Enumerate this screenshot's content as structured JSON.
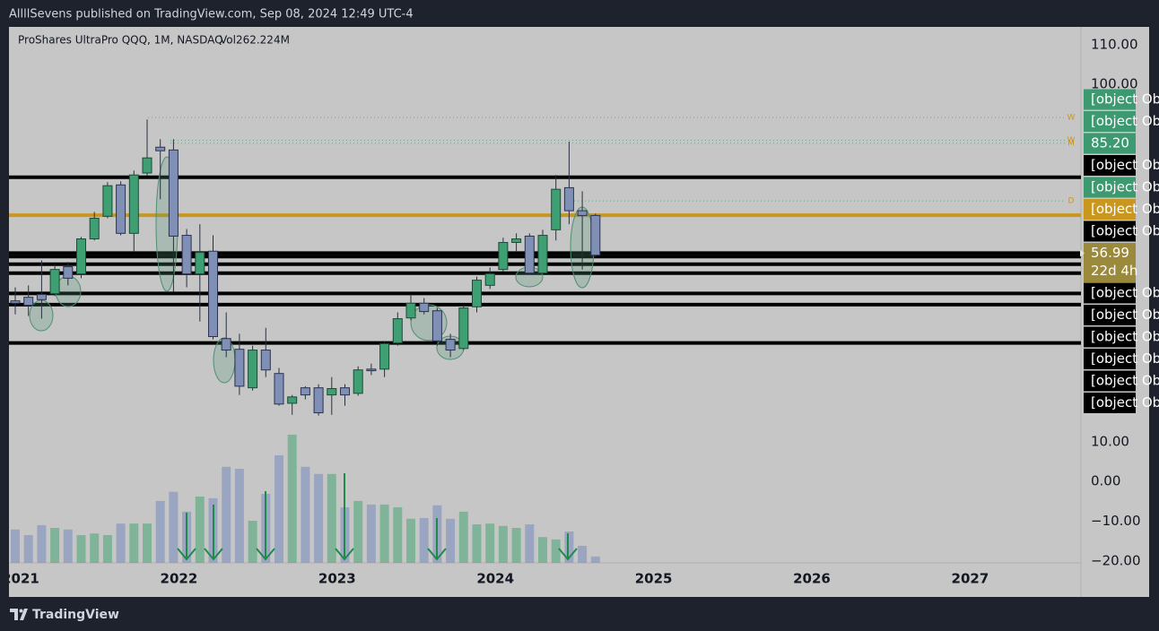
{
  "header": {
    "publisher": "AllllSevens published on TradingView.com, Sep 08, 2024 12:49 UTC-4"
  },
  "chart_data": {
    "type": "candlestick",
    "title": "ProShares UltraPro QQQ, 1M, NASDAQ",
    "volume_label": "Vol262.224M",
    "categories": [
      "2021",
      null,
      null,
      null,
      null,
      null,
      null,
      null,
      null,
      null,
      null,
      null,
      "2022",
      null,
      null,
      null,
      null,
      null,
      null,
      null,
      null,
      null,
      null,
      null,
      "2023",
      null,
      null,
      null,
      null,
      null,
      null,
      null,
      null,
      null,
      null,
      null,
      "2024",
      null,
      null,
      null,
      null,
      null,
      null,
      null,
      null,
      null,
      null,
      null,
      "2025",
      null,
      null,
      null,
      null,
      null,
      null,
      null,
      null,
      null,
      null,
      null,
      "2026",
      null,
      null,
      null,
      null,
      null,
      null,
      null,
      null,
      null,
      null,
      null,
      "2027",
      null,
      null,
      null,
      null,
      null,
      null,
      null,
      null
    ],
    "open": [
      45.5,
      46.4,
      47.1,
      47.3,
      54.1,
      52.3,
      61.1,
      66.8,
      74.7,
      62.5,
      77.7,
      84.2,
      83.5,
      62.0,
      52.3,
      58.0,
      36.0,
      33.3,
      23.6,
      33.1,
      27.2,
      19.7,
      23.6,
      23.6,
      21.8,
      23.6,
      22.2,
      28.3,
      28.3,
      34.9,
      41.2,
      44.9,
      43.0,
      35.8,
      33.5,
      44.0,
      49.4,
      53.4,
      60.2,
      61.8,
      52.5,
      63.4,
      74.0,
      68.2,
      67.0,
      null,
      null,
      null,
      null,
      null,
      null,
      null,
      null,
      null,
      null,
      null,
      null,
      null,
      null,
      null,
      null,
      null,
      null,
      null,
      null,
      null,
      null,
      null,
      null,
      null,
      null,
      null,
      null,
      null,
      null,
      null,
      null,
      null,
      null,
      null,
      null
    ],
    "high": [
      48.9,
      49.4,
      55.7,
      54.6,
      55.3,
      61.6,
      67.9,
      75.4,
      75.6,
      78.3,
      91.2,
      86.2,
      86.2,
      63.6,
      64.8,
      62.0,
      42.6,
      37.2,
      34.2,
      38.7,
      28.6,
      21.8,
      24.0,
      24.5,
      26.3,
      24.5,
      29.0,
      29.7,
      35.4,
      42.6,
      47.1,
      46.2,
      43.7,
      37.2,
      44.4,
      51.6,
      53.9,
      61.4,
      62.5,
      62.5,
      63.4,
      77.2,
      85.6,
      73.1,
      67.5,
      null,
      null,
      null,
      null,
      null,
      null,
      null,
      null,
      null,
      null,
      null,
      null,
      null,
      null,
      null,
      null,
      null,
      null,
      null,
      null,
      null,
      null,
      null,
      null,
      null,
      null,
      null,
      null,
      null,
      null,
      null,
      null,
      null,
      null,
      null,
      null
    ],
    "low": [
      42.1,
      41.7,
      41.0,
      46.7,
      49.4,
      51.2,
      60.7,
      66.3,
      62.0,
      58.0,
      77.0,
      71.1,
      47.8,
      48.9,
      40.3,
      35.8,
      31.3,
      21.8,
      22.9,
      26.3,
      19.1,
      16.8,
      20.7,
      16.6,
      16.8,
      19.1,
      21.6,
      26.8,
      26.3,
      34.2,
      40.6,
      42.1,
      34.2,
      31.3,
      33.1,
      42.6,
      48.5,
      52.8,
      58.0,
      52.1,
      52.1,
      60.7,
      64.8,
      53.4,
      56.6,
      null,
      null,
      null,
      null,
      null,
      null,
      null,
      null,
      null,
      null,
      null,
      null,
      null,
      null,
      null,
      null,
      null,
      null,
      null,
      null,
      null,
      null,
      null,
      null,
      null,
      null,
      null,
      null,
      null,
      null,
      null,
      null,
      null,
      null,
      null,
      null
    ],
    "close": [
      44.9,
      44.4,
      45.8,
      53.4,
      51.2,
      61.1,
      66.3,
      74.5,
      62.5,
      77.2,
      81.5,
      83.3,
      61.8,
      52.3,
      57.7,
      36.5,
      33.1,
      24.0,
      33.1,
      28.1,
      19.5,
      21.3,
      21.8,
      17.3,
      23.4,
      21.8,
      28.1,
      27.9,
      34.7,
      41.0,
      44.9,
      42.8,
      35.4,
      33.1,
      43.7,
      50.7,
      52.3,
      60.2,
      61.1,
      52.5,
      62.0,
      73.6,
      68.2,
      67.0,
      56.99,
      null,
      null,
      null,
      null,
      null,
      null,
      null,
      null,
      null,
      null,
      null,
      null,
      null,
      null,
      null,
      null,
      null,
      null,
      null,
      null,
      null,
      null,
      null,
      null,
      null,
      null,
      null,
      null,
      null,
      null,
      null,
      null,
      null,
      null,
      null,
      null
    ],
    "volume": [
      -12.1,
      -13.5,
      -11.0,
      -11.7,
      -12.1,
      -13.5,
      -13.1,
      -13.5,
      -10.6,
      -10.6,
      -10.6,
      -4.9,
      -2.6,
      -7.6,
      -3.8,
      -4.2,
      3.7,
      3.2,
      -9.9,
      -3.1,
      6.6,
      11.8,
      3.7,
      1.9,
      1.9,
      -6.5,
      -4.9,
      -5.8,
      -5.8,
      -6.5,
      -9.4,
      -9.2,
      -6.0,
      -9.4,
      -7.6,
      -10.8,
      -10.6,
      -11.2,
      -11.7,
      -10.8,
      -14.0,
      -14.6,
      -12.6,
      -16.2,
      -18.9,
      null,
      null,
      null,
      null,
      null,
      null,
      null,
      null,
      null,
      null,
      null,
      null,
      null,
      null,
      null,
      null,
      null,
      null,
      null,
      null,
      null,
      null,
      null,
      null,
      null,
      null,
      null,
      null,
      null,
      null,
      null,
      null,
      null,
      null,
      null,
      null
    ],
    "up_color": "#3e9f72",
    "down_color": "#7f8fb5",
    "ylim": [
      -20.5,
      114.5
    ],
    "yticks": [
      {
        "value": 110,
        "label": "110.00"
      },
      {
        "value": 100,
        "label": "100.00"
      },
      {
        "value": 10,
        "label": "10.00"
      },
      {
        "value": 0,
        "label": "0.00"
      },
      {
        "value": -10,
        "label": "−10.00"
      },
      {
        "value": -20,
        "label": "−20.00"
      }
    ],
    "levels": [
      {
        "value": 91.68,
        "color": "#3d9970",
        "style": "dotted",
        "tag": "W"
      },
      {
        "value": 85.95,
        "color": "#3d9970",
        "style": "dotted",
        "tag": "W"
      },
      {
        "value": 85.2,
        "label": "85.20",
        "color": "#3d9970",
        "style": "dotted",
        "tag": "M"
      },
      {
        "value": 76.62,
        "color": "#000000",
        "style": "solid"
      },
      {
        "value": 70.67,
        "color": "#3d9970",
        "style": "dotted",
        "tag": "D"
      },
      {
        "value": 67.05,
        "color": "#c9961e",
        "style": "solid"
      },
      {
        "value": 57.52,
        "color": "#000000",
        "style": "solid"
      },
      {
        "value": 56.65,
        "color": "#000000",
        "style": "solid"
      },
      {
        "value": 54.73,
        "color": "#000000",
        "style": "solid"
      },
      {
        "value": 52.47,
        "color": "#000000",
        "style": "solid"
      },
      {
        "value": 47.36,
        "color": "#000000",
        "style": "solid"
      },
      {
        "value": 44.54,
        "color": "#000000",
        "style": "solid"
      },
      {
        "value": 34.88,
        "color": "#000000",
        "style": "solid"
      }
    ],
    "last_color": "#9c8a3c",
    "countdown": "22d 4h"
  },
  "footer": {
    "brand": "TradingView"
  }
}
